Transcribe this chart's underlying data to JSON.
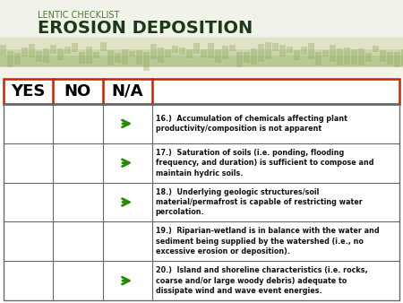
{
  "title_small": "LENTIC CHECKLIST",
  "title_large": "EROSION DEPOSITION",
  "rows": [
    {
      "na": true,
      "text": "16.)  Accumulation of chemicals affecting plant\nproductivity/composition is not apparent"
    },
    {
      "na": true,
      "text": "17.)  Saturation of soils (i.e. ponding, flooding\nfrequency, and duration) is sufficient to compose and\nmaintain hydric soils."
    },
    {
      "na": true,
      "text": "18.)  Underlying geologic structures/soil\nmaterial/permafrost is capable of restricting water\npercolation."
    },
    {
      "na": false,
      "text": "19.)  Riparian-wetland is in balance with the water and\nsediment being supplied by the watershed (i.e., no\nexcessive erosion or deposition)."
    },
    {
      "na": true,
      "text": "20.)  Island and shoreline characteristics (i.e. rocks,\ncoarse and/or large woody debris) adequate to\ndissipate wind and wave event energies."
    }
  ],
  "header_border": "#cc2200",
  "row_border": "#666666",
  "arrow_color": "#228B00",
  "title_small_color": "#4a7a2a",
  "title_large_color": "#1a3a1a",
  "text_color": "#111111",
  "bg_color": "#ffffff",
  "nature_color1": "#e8e8d8",
  "nature_color2": "#c8d4a8",
  "nature_color3": "#b8c890"
}
